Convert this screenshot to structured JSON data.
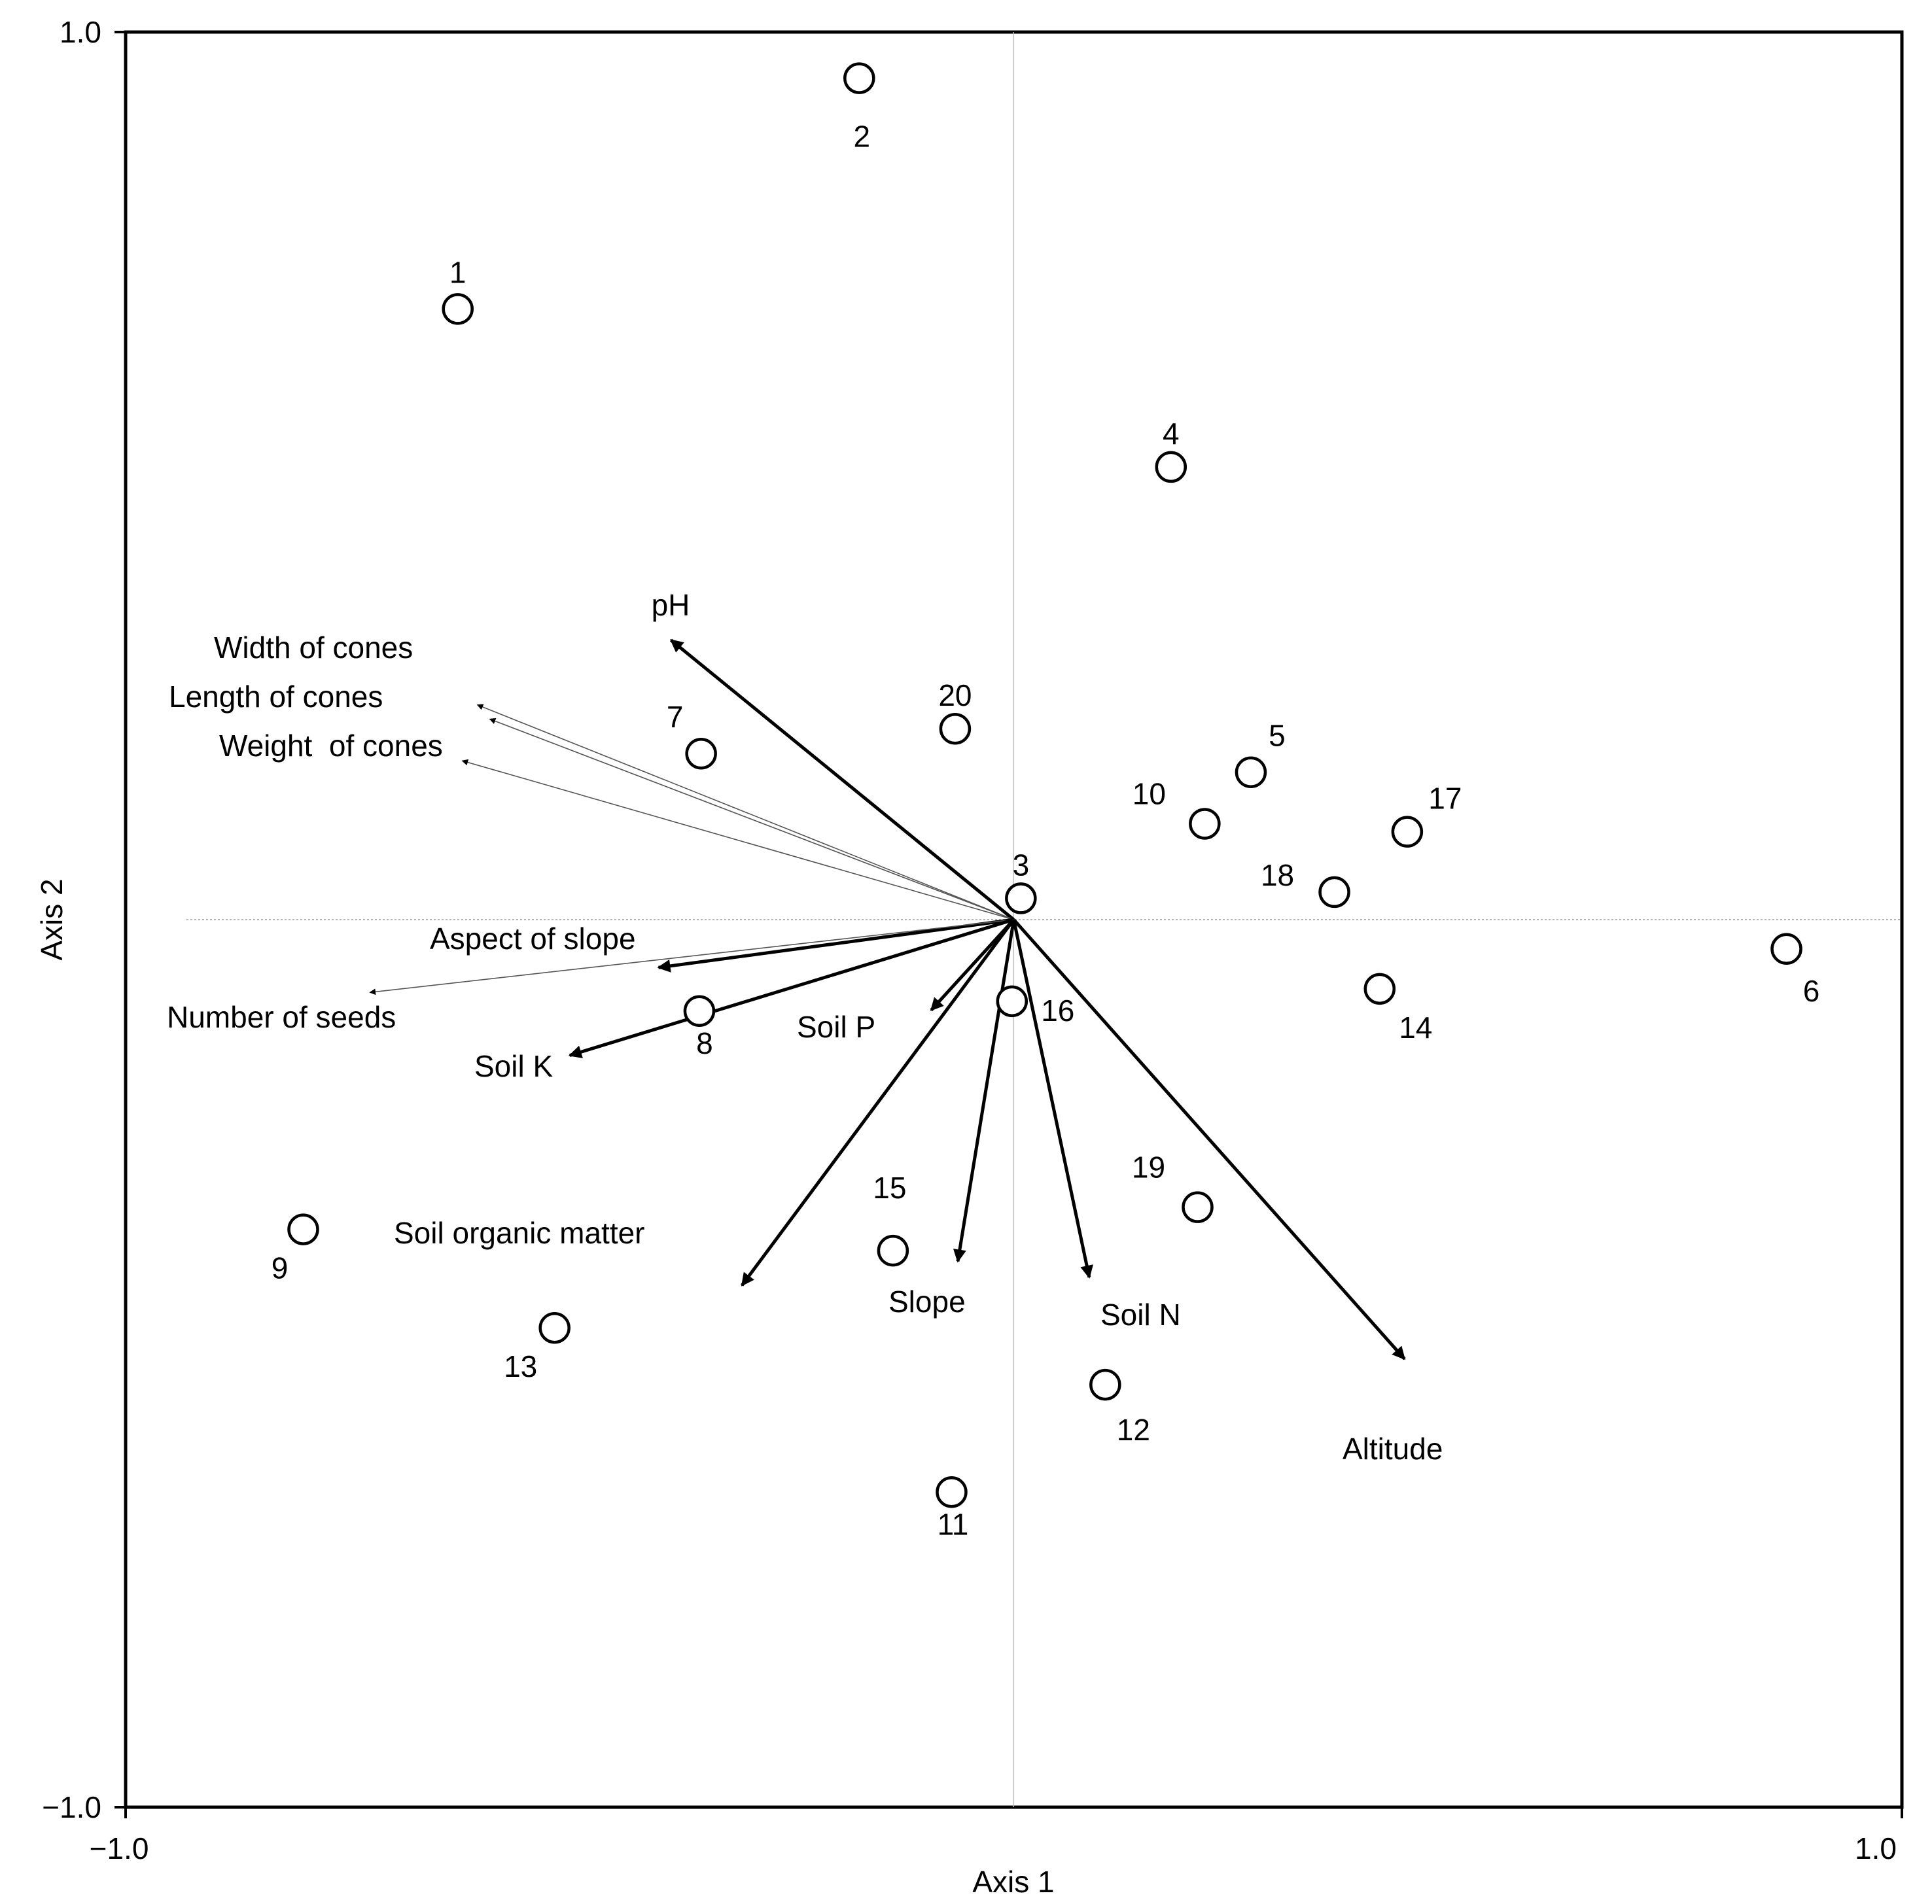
{
  "chart_data": {
    "type": "scatter",
    "title": "",
    "xlabel": "Axis 1",
    "ylabel": "Axis 2",
    "xlim": [
      -1.0,
      1.0
    ],
    "ylim": [
      -1.0,
      1.0
    ],
    "x_tick_labels": [
      "−1.0",
      "1.0"
    ],
    "y_tick_labels": [
      "1.0",
      "−1.0"
    ],
    "grid": false,
    "zero_lines": true,
    "sites": [
      {
        "label": "1",
        "x": -0.626,
        "y": 0.688
      },
      {
        "label": "2",
        "x": -0.174,
        "y": 0.948
      },
      {
        "label": "3",
        "x": 0.008,
        "y": 0.024
      },
      {
        "label": "4",
        "x": 0.177,
        "y": 0.51
      },
      {
        "label": "5",
        "x": 0.267,
        "y": 0.166
      },
      {
        "label": "6",
        "x": 0.87,
        "y": -0.033
      },
      {
        "label": "7",
        "x": -0.352,
        "y": 0.187
      },
      {
        "label": "8",
        "x": -0.354,
        "y": -0.103
      },
      {
        "label": "9",
        "x": -0.8,
        "y": -0.349
      },
      {
        "label": "10",
        "x": 0.215,
        "y": 0.108
      },
      {
        "label": "11",
        "x": -0.07,
        "y": -0.645
      },
      {
        "label": "12",
        "x": 0.103,
        "y": -0.524
      },
      {
        "label": "13",
        "x": -0.517,
        "y": -0.46
      },
      {
        "label": "14",
        "x": 0.412,
        "y": -0.078
      },
      {
        "label": "15",
        "x": -0.136,
        "y": -0.373
      },
      {
        "label": "16",
        "x": -0.002,
        "y": -0.092
      },
      {
        "label": "17",
        "x": 0.443,
        "y": 0.099
      },
      {
        "label": "18",
        "x": 0.361,
        "y": 0.031
      },
      {
        "label": "19",
        "x": 0.207,
        "y": -0.324
      },
      {
        "label": "20",
        "x": -0.066,
        "y": 0.215
      }
    ],
    "vectors": [
      {
        "label": "pH",
        "x": -0.386,
        "y": 0.315,
        "style": "bold"
      },
      {
        "label": "Width of cones",
        "x": -0.621,
        "y": 0.179,
        "style": "thin"
      },
      {
        "label": "Length of cones",
        "x": -0.604,
        "y": 0.242,
        "style": "thin"
      },
      {
        "label": "Weight  of cones",
        "x": -0.59,
        "y": 0.226,
        "style": "thin"
      },
      {
        "label": "Aspect of slope",
        "x": -0.4,
        "y": -0.054,
        "style": "bold"
      },
      {
        "label": "Number of seeds",
        "x": -0.725,
        "y": -0.082,
        "style": "thin"
      },
      {
        "label": "Soil K",
        "x": -0.5,
        "y": -0.153,
        "style": "bold"
      },
      {
        "label": "Soil P",
        "x": -0.093,
        "y": -0.102,
        "style": "bold"
      },
      {
        "label": "Soil organic matter",
        "x": -0.306,
        "y": -0.412,
        "style": "bold"
      },
      {
        "label": "Slope",
        "x": -0.063,
        "y": -0.385,
        "style": "bold"
      },
      {
        "label": "Soil N",
        "x": 0.085,
        "y": -0.403,
        "style": "bold"
      },
      {
        "label": "Altitude",
        "x": 0.44,
        "y": -0.495,
        "style": "bold"
      }
    ]
  }
}
